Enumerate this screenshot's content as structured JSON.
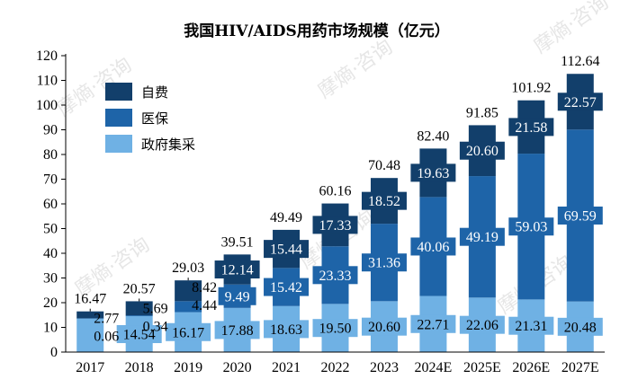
{
  "chart_data": {
    "type": "bar",
    "stacked": true,
    "title": "我国HIV/AIDS用药市场规模（亿元）",
    "categories": [
      "2017",
      "2018",
      "2019",
      "2020",
      "2021",
      "2022",
      "2023",
      "2024E",
      "2025E",
      "2026E",
      "2027E"
    ],
    "ylim": [
      0,
      120
    ],
    "yticks": [
      0,
      10,
      20,
      30,
      40,
      50,
      60,
      70,
      80,
      90,
      100,
      110,
      120
    ],
    "series": [
      {
        "name": "政府集采",
        "color": "#6fb1e4",
        "values": [
          13.64,
          14.54,
          16.17,
          17.88,
          18.63,
          19.5,
          20.6,
          22.71,
          22.06,
          21.31,
          20.48
        ],
        "labels": [
          "",
          "14.54",
          "16.17",
          "17.88",
          "18.63",
          "19.50",
          "20.60",
          "22.71",
          "22.06",
          "21.31",
          "20.48"
        ]
      },
      {
        "name": "医保",
        "color": "#1e64a8",
        "values": [
          0.06,
          0.34,
          4.44,
          9.49,
          15.42,
          23.33,
          31.36,
          40.06,
          49.19,
          59.03,
          69.59
        ],
        "labels": [
          "",
          "",
          "",
          "9.49",
          "15.42",
          "23.33",
          "31.36",
          "40.06",
          "49.19",
          "59.03",
          "69.59"
        ]
      },
      {
        "name": "自费",
        "color": "#123f6b",
        "values": [
          2.77,
          5.69,
          8.42,
          12.14,
          15.44,
          17.33,
          18.52,
          19.63,
          20.6,
          21.58,
          22.57
        ],
        "labels": [
          "",
          "",
          "",
          "12.14",
          "15.44",
          "17.33",
          "18.52",
          "19.63",
          "20.60",
          "21.58",
          "22.57"
        ]
      }
    ],
    "totals": [
      "16.47",
      "20.57",
      "29.03",
      "39.51",
      "49.49",
      "60.16",
      "70.48",
      "82.40",
      "91.85",
      "101.92",
      "112.64"
    ],
    "callouts": [
      {
        "category": "2017",
        "labels": [
          "2.77",
          "0.06"
        ]
      },
      {
        "category": "2018",
        "labels": [
          "5.69",
          "0.34"
        ]
      },
      {
        "category": "2019",
        "labels": [
          "8.42",
          "4.44"
        ]
      }
    ],
    "legend": {
      "position": "top-left"
    },
    "grid": false
  },
  "watermark": "摩熵·咨询"
}
